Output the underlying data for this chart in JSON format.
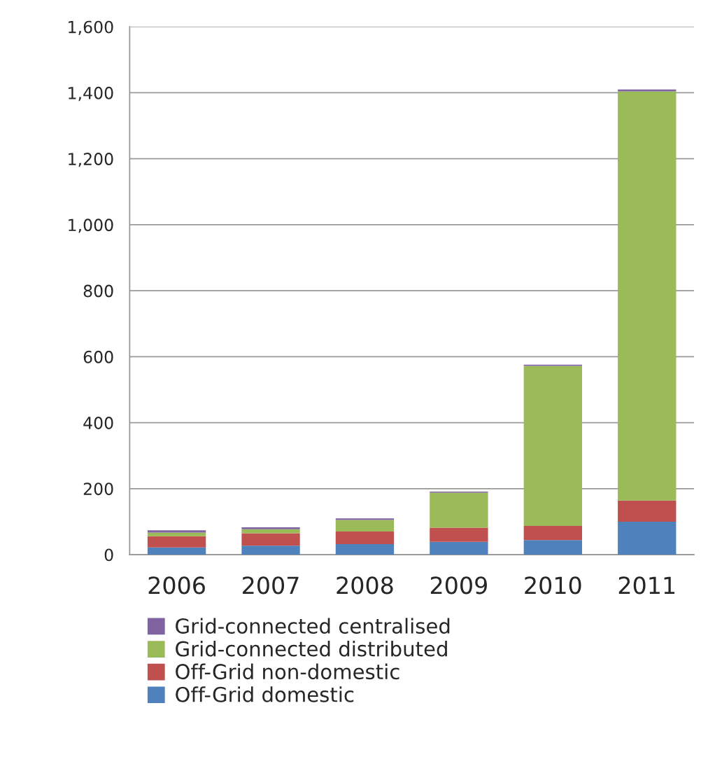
{
  "chart_data": {
    "type": "bar",
    "stacked": true,
    "categories": [
      "2006",
      "2007",
      "2008",
      "2009",
      "2010",
      "2011"
    ],
    "series": [
      {
        "name": "Off-Grid domestic",
        "color": "#4f81bd",
        "values": [
          22,
          27,
          32,
          39,
          44,
          100
        ]
      },
      {
        "name": "Off-Grid non-domestic",
        "color": "#c0504d",
        "values": [
          34,
          38,
          38,
          43,
          43,
          64
        ]
      },
      {
        "name": "Grid-connected distributed",
        "color": "#9bbb59",
        "values": [
          11,
          12,
          35,
          106,
          485,
          1240
        ]
      },
      {
        "name": "Grid-connected centralised",
        "color": "#8064a2",
        "values": [
          7,
          6,
          5,
          3,
          4,
          6
        ]
      }
    ],
    "ylim": [
      0,
      1600
    ],
    "yticks": [
      0,
      200,
      400,
      600,
      800,
      {
        "value": 1000,
        "label": "1,000"
      },
      {
        "value": 1200,
        "label": "1,200"
      },
      {
        "value": 1400,
        "label": "1,400"
      },
      {
        "value": 1600,
        "label": "1,600"
      }
    ],
    "grid": "y",
    "legend": "bottom"
  }
}
